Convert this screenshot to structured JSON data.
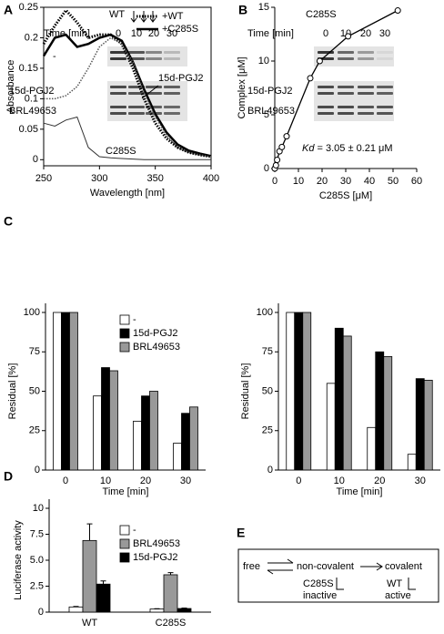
{
  "panel_labels": [
    "A",
    "B",
    "C",
    "D",
    "E"
  ],
  "chart_data": [
    {
      "type": "line",
      "xlabel": "Wavelength [nm]",
      "ylabel": "Absorbance",
      "x": [
        250,
        260,
        270,
        280,
        290,
        300,
        310,
        320,
        330,
        340,
        350,
        360,
        370,
        380,
        390,
        400
      ],
      "xlim": [
        250,
        400
      ],
      "xticks": [
        250,
        300,
        350,
        400
      ],
      "ylim": [
        -0.01,
        0.25
      ],
      "yticks": [
        0,
        0.05,
        0.1,
        0.15,
        0.2,
        0.25
      ],
      "legend": "top-right",
      "series": [
        {
          "name": "+WT",
          "color": "#000",
          "dash": "dotted",
          "width": 3,
          "values": [
            0.19,
            0.22,
            0.245,
            0.225,
            0.2,
            0.205,
            0.205,
            0.19,
            0.15,
            0.1,
            0.06,
            0.035,
            0.02,
            0.012,
            0.008,
            0.005
          ]
        },
        {
          "name": "+C285S",
          "color": "#000",
          "dash": "solid",
          "width": 2.5,
          "values": [
            0.17,
            0.2,
            0.205,
            0.185,
            0.19,
            0.2,
            0.205,
            0.195,
            0.16,
            0.115,
            0.075,
            0.045,
            0.025,
            0.015,
            0.01,
            0.006
          ]
        },
        {
          "name": "15d-PGJ2",
          "color": "#555",
          "dash": "dotted",
          "width": 1.5,
          "values": [
            0.1,
            0.1,
            0.105,
            0.12,
            0.15,
            0.185,
            0.2,
            0.19,
            0.16,
            0.11,
            0.07,
            0.04,
            0.02,
            0.012,
            0.008,
            0.005
          ]
        },
        {
          "name": "C285S",
          "color": "#333",
          "dash": "solid",
          "width": 1,
          "values": [
            0.06,
            0.055,
            0.065,
            0.07,
            0.02,
            0.005,
            0.003,
            0.002,
            0.001,
            0,
            0,
            0,
            0,
            0,
            0,
            0
          ]
        }
      ]
    },
    {
      "type": "scatter",
      "xlabel": "C285S [μM]",
      "ylabel": "Complex [μM]",
      "annotation_italic": "Kd",
      "annotation": " = 3.05 ± 0.21 μM",
      "x": [
        0,
        0.5,
        1,
        2,
        3,
        5,
        15,
        19,
        31,
        52
      ],
      "values": [
        0,
        0.3,
        0.8,
        1.6,
        2,
        3,
        8.4,
        10,
        12.3,
        14.7
      ],
      "xlim": [
        0,
        60
      ],
      "xticks": [
        0,
        10,
        20,
        30,
        40,
        50,
        60
      ],
      "ylim": [
        0,
        15
      ],
      "yticks": [
        0,
        5,
        10,
        15
      ]
    },
    {
      "type": "bar",
      "xlabel": "Time [min]",
      "ylabel": "Residual [%]",
      "categories": [
        "0",
        "10",
        "20",
        "30"
      ],
      "ylim": [
        0,
        100
      ],
      "yticks": [
        0,
        25,
        50,
        75,
        100
      ],
      "legend": "top-right",
      "series": [
        {
          "name": "-",
          "color": "#ffffff",
          "values": [
            100,
            47,
            31,
            17
          ]
        },
        {
          "name": "15d-PGJ2",
          "color": "#000000",
          "values": [
            100,
            65,
            47,
            36
          ]
        },
        {
          "name": "BRL49653",
          "color": "#999999",
          "values": [
            100,
            63,
            50,
            40
          ]
        }
      ]
    },
    {
      "type": "bar",
      "xlabel": "Time [min]",
      "ylabel": "Residual [%]",
      "categories": [
        "0",
        "10",
        "20",
        "30"
      ],
      "ylim": [
        0,
        100
      ],
      "yticks": [
        0,
        25,
        50,
        75,
        100
      ],
      "series": [
        {
          "color": "#ffffff",
          "values": [
            100,
            55,
            27,
            10
          ]
        },
        {
          "color": "#000000",
          "values": [
            100,
            90,
            75,
            58
          ]
        },
        {
          "color": "#999999",
          "values": [
            100,
            85,
            72,
            57
          ]
        }
      ]
    },
    {
      "type": "bar",
      "ylabel": "Luciferase activity",
      "categories": [
        "WT",
        "C285S"
      ],
      "ylim": [
        0,
        10
      ],
      "yticks": [
        0,
        2.5,
        {
          "value": 5,
          "label": "5.0"
        },
        7.5,
        10
      ],
      "legend": "top-right",
      "series": [
        {
          "name": "-",
          "color": "#ffffff",
          "values": [
            0.5,
            0.3
          ],
          "errors": [
            0.05,
            0.03
          ]
        },
        {
          "name": "BRL49653",
          "color": "#999999",
          "values": [
            6.9,
            3.6
          ],
          "errors": [
            1.6,
            0.2
          ]
        },
        {
          "name": "15d-PGJ2",
          "color": "#000000",
          "values": [
            2.7,
            0.35
          ],
          "errors": [
            0.3,
            0.05
          ]
        }
      ]
    }
  ],
  "gels": [
    {
      "title": "WT",
      "time_label": "Time [min]",
      "lanes": [
        "0",
        "10",
        "20",
        "30"
      ],
      "rows": [
        "-",
        "15d-PGJ2",
        "BRL49653"
      ]
    },
    {
      "title": "C285S",
      "time_label": "Time [min]",
      "lanes": [
        "0",
        "10",
        "20",
        "30"
      ],
      "rows": [
        "-",
        "15d-PGJ2",
        "BRL49653"
      ]
    }
  ],
  "scheme": {
    "free": "free",
    "noncovalent": "non-covalent",
    "covalent": "covalent",
    "mutant": "C285S",
    "mutant_state": "inactive",
    "wildtype": "WT",
    "wildtype_state": "active"
  }
}
